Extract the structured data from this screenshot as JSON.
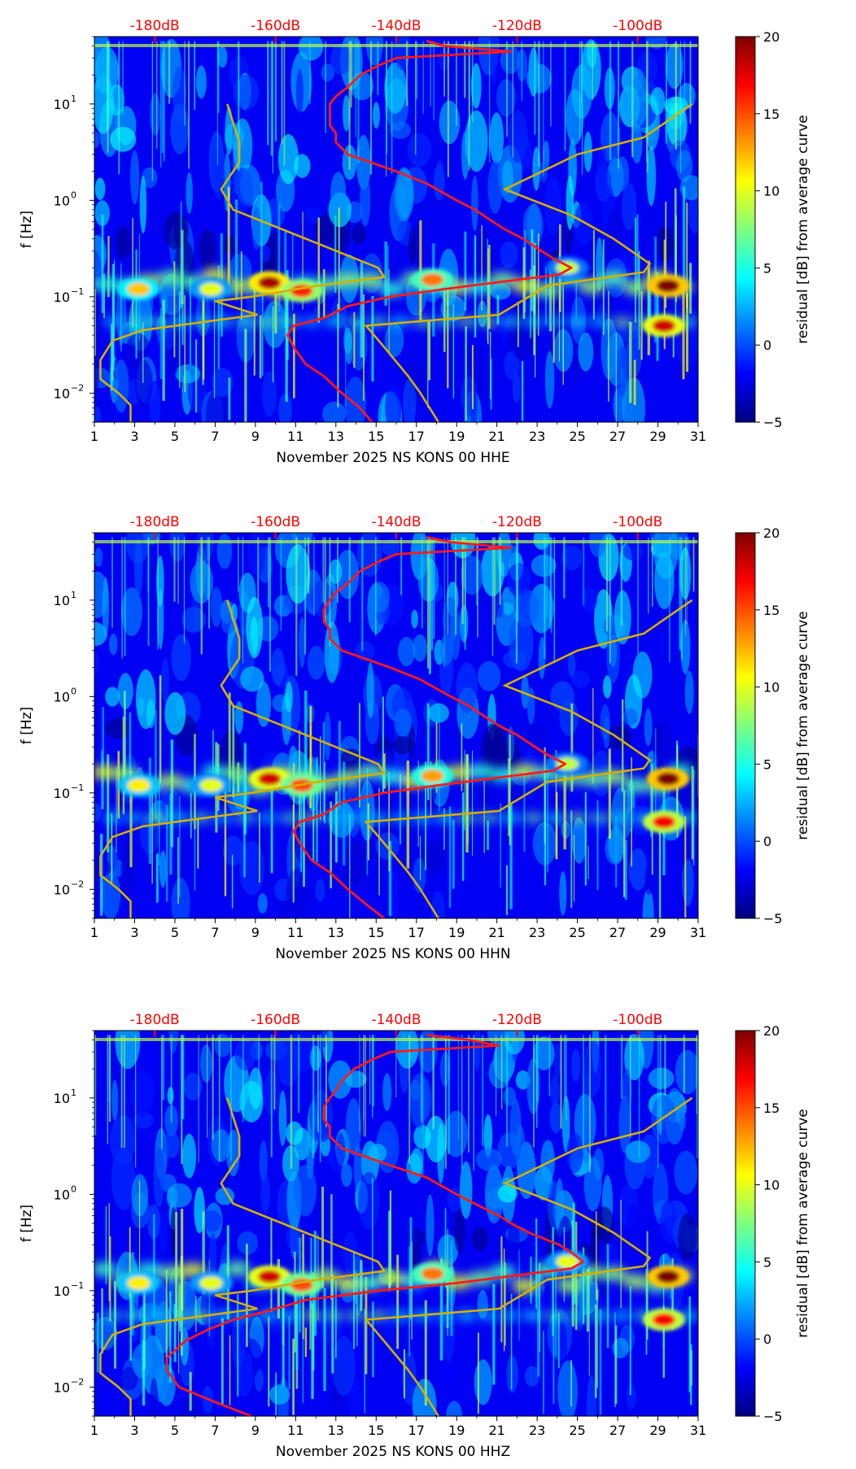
{
  "figure": {
    "top_axis_color": "#ff0000",
    "model_curve_color": "#d4b000",
    "median_curve_color": "#ff1a1a",
    "colormap": [
      "#00007f",
      "#0000ff",
      "#007fff",
      "#00ffff",
      "#7fff7f",
      "#ffff00",
      "#ff7f00",
      "#ff0000",
      "#7f0000"
    ]
  },
  "chart_data": [
    {
      "type": "heatmap",
      "channel": "HHE",
      "xlabel": "November 2025 NS KONS 00 HHE",
      "ylabel": "f [Hz]",
      "colorbar_label": "residual [dB] from average curve",
      "x_ticks": [
        "1",
        "3",
        "5",
        "7",
        "9",
        "11",
        "13",
        "15",
        "17",
        "19",
        "21",
        "23",
        "25",
        "27",
        "29",
        "31"
      ],
      "y_ticks": [
        "10",
        "10",
        "10",
        "10"
      ],
      "y_tick_exponents": [
        "−2",
        "−1",
        "0",
        "1"
      ],
      "y_tick_values": [
        0.01,
        0.1,
        1,
        10
      ],
      "xlim": [
        1,
        31
      ],
      "ylim": [
        0.005,
        50
      ],
      "top_ticks": [
        "-180dB",
        "-160dB",
        "-140dB",
        "-120dB",
        "-100dB"
      ],
      "top_tick_values": [
        -180,
        -160,
        -140,
        -120,
        -100
      ],
      "top_xlim": [
        -190,
        -90
      ],
      "colorbar_ticks": [
        "20",
        "15",
        "10",
        "5",
        "0",
        "−5"
      ],
      "colorbar_values": [
        20,
        15,
        10,
        5,
        0,
        -5
      ],
      "colorbar_range": [
        -5,
        20
      ],
      "median_curve": {
        "f": [
          45,
          40,
          35,
          30,
          25,
          20,
          15,
          12,
          10,
          8,
          6,
          5,
          4,
          3,
          2,
          1.5,
          1,
          0.8,
          0.6,
          0.5,
          0.4,
          0.3,
          0.25,
          0.2,
          0.17,
          0.15,
          0.12,
          0.1,
          0.08,
          0.06,
          0.05,
          0.04,
          0.03,
          0.02,
          0.015,
          0.01,
          0.007,
          0.005
        ],
        "db": [
          -135,
          -132,
          -121,
          -140,
          -143,
          -146,
          -148,
          -150,
          -151,
          -151,
          -151,
          -150,
          -150,
          -148,
          -140,
          -135,
          -130,
          -127,
          -124,
          -122,
          -119,
          -116,
          -114,
          -111,
          -113,
          -120,
          -132,
          -141,
          -148,
          -152,
          -157,
          -158,
          -157,
          -155,
          -152,
          -149,
          -146,
          -144
        ]
      },
      "hot_spots": [
        {
          "day": 9.7,
          "f": 0.14,
          "value": 19
        },
        {
          "day": 11.3,
          "f": 0.115,
          "value": 16
        },
        {
          "day": 17.8,
          "f": 0.15,
          "value": 14
        },
        {
          "day": 29.5,
          "f": 0.13,
          "value": 20
        },
        {
          "day": 29.3,
          "f": 0.05,
          "value": 18
        },
        {
          "day": 24.5,
          "f": 0.2,
          "value": 9
        },
        {
          "day": 3.2,
          "f": 0.12,
          "value": 12
        },
        {
          "day": 6.8,
          "f": 0.12,
          "value": 10
        }
      ]
    },
    {
      "type": "heatmap",
      "channel": "HHN",
      "xlabel": "November 2025 NS KONS 00 HHN",
      "ylabel": "f [Hz]",
      "colorbar_label": "residual [dB] from average curve",
      "x_ticks": [
        "1",
        "3",
        "5",
        "7",
        "9",
        "11",
        "13",
        "15",
        "17",
        "19",
        "21",
        "23",
        "25",
        "27",
        "29",
        "31"
      ],
      "y_ticks": [
        "10",
        "10",
        "10",
        "10"
      ],
      "y_tick_exponents": [
        "−2",
        "−1",
        "0",
        "1"
      ],
      "y_tick_values": [
        0.01,
        0.1,
        1,
        10
      ],
      "xlim": [
        1,
        31
      ],
      "ylim": [
        0.005,
        50
      ],
      "top_ticks": [
        "-180dB",
        "-160dB",
        "-140dB",
        "-120dB",
        "-100dB"
      ],
      "top_tick_values": [
        -180,
        -160,
        -140,
        -120,
        -100
      ],
      "top_xlim": [
        -190,
        -90
      ],
      "colorbar_ticks": [
        "20",
        "15",
        "10",
        "5",
        "0",
        "−5"
      ],
      "colorbar_values": [
        20,
        15,
        10,
        5,
        0,
        -5
      ],
      "colorbar_range": [
        -5,
        20
      ],
      "median_curve": {
        "f": [
          45,
          40,
          35,
          30,
          25,
          20,
          15,
          12,
          10,
          8,
          6,
          5,
          4,
          3,
          2,
          1.5,
          1,
          0.8,
          0.6,
          0.5,
          0.4,
          0.3,
          0.25,
          0.2,
          0.17,
          0.15,
          0.12,
          0.1,
          0.08,
          0.06,
          0.05,
          0.04,
          0.03,
          0.02,
          0.015,
          0.01,
          0.007,
          0.005
        ],
        "db": [
          -135,
          -131,
          -121,
          -140,
          -143,
          -146,
          -148,
          -150,
          -151,
          -152,
          -152,
          -151,
          -151,
          -149,
          -141,
          -136,
          -131,
          -128,
          -125,
          -123,
          -120,
          -117,
          -115,
          -112,
          -114,
          -121,
          -133,
          -142,
          -149,
          -152,
          -156,
          -157,
          -156,
          -154,
          -151,
          -148,
          -145,
          -142
        ]
      },
      "hot_spots": [
        {
          "day": 9.7,
          "f": 0.14,
          "value": 18
        },
        {
          "day": 11.3,
          "f": 0.12,
          "value": 15
        },
        {
          "day": 17.8,
          "f": 0.15,
          "value": 13
        },
        {
          "day": 29.5,
          "f": 0.14,
          "value": 20
        },
        {
          "day": 29.3,
          "f": 0.05,
          "value": 17
        },
        {
          "day": 24.5,
          "f": 0.2,
          "value": 9
        },
        {
          "day": 3.2,
          "f": 0.12,
          "value": 11
        },
        {
          "day": 6.8,
          "f": 0.12,
          "value": 10
        }
      ]
    },
    {
      "type": "heatmap",
      "channel": "HHZ",
      "xlabel": "November 2025 NS KONS 00 HHZ",
      "ylabel": "f [Hz]",
      "colorbar_label": "residual [dB] from average curve",
      "x_ticks": [
        "1",
        "3",
        "5",
        "7",
        "9",
        "11",
        "13",
        "15",
        "17",
        "19",
        "21",
        "23",
        "25",
        "27",
        "29",
        "31"
      ],
      "y_ticks": [
        "10",
        "10",
        "10",
        "10"
      ],
      "y_tick_exponents": [
        "−2",
        "−1",
        "0",
        "1"
      ],
      "y_tick_values": [
        0.01,
        0.1,
        1,
        10
      ],
      "xlim": [
        1,
        31
      ],
      "ylim": [
        0.005,
        50
      ],
      "top_ticks": [
        "-180dB",
        "-160dB",
        "-140dB",
        "-120dB",
        "-100dB"
      ],
      "top_tick_values": [
        -180,
        -160,
        -140,
        -120,
        -100
      ],
      "top_xlim": [
        -190,
        -90
      ],
      "colorbar_ticks": [
        "20",
        "15",
        "10",
        "5",
        "0",
        "−5"
      ],
      "colorbar_values": [
        20,
        15,
        10,
        5,
        0,
        -5
      ],
      "colorbar_range": [
        -5,
        20
      ],
      "median_curve": {
        "f": [
          45,
          40,
          35,
          30,
          25,
          20,
          15,
          12,
          10,
          8,
          6,
          5,
          4,
          3,
          2,
          1.5,
          1,
          0.8,
          0.6,
          0.5,
          0.4,
          0.3,
          0.25,
          0.2,
          0.17,
          0.15,
          0.12,
          0.1,
          0.08,
          0.06,
          0.05,
          0.04,
          0.03,
          0.02,
          0.015,
          0.01,
          0.007,
          0.005
        ],
        "db": [
          -135,
          -128,
          -123,
          -141,
          -144,
          -147,
          -149,
          -150,
          -151,
          -152,
          -152,
          -151,
          -151,
          -149,
          -141,
          -135,
          -130,
          -127,
          -123,
          -121,
          -118,
          -113,
          -111,
          -109,
          -111,
          -118,
          -130,
          -143,
          -155,
          -162,
          -167,
          -171,
          -175,
          -178,
          -178,
          -176,
          -170,
          -164
        ]
      },
      "hot_spots": [
        {
          "day": 9.7,
          "f": 0.14,
          "value": 18
        },
        {
          "day": 11.3,
          "f": 0.115,
          "value": 15
        },
        {
          "day": 17.8,
          "f": 0.15,
          "value": 14
        },
        {
          "day": 29.5,
          "f": 0.14,
          "value": 20
        },
        {
          "day": 29.3,
          "f": 0.05,
          "value": 17
        },
        {
          "day": 24.5,
          "f": 0.2,
          "value": 10
        },
        {
          "day": 3.2,
          "f": 0.12,
          "value": 11
        },
        {
          "day": 6.8,
          "f": 0.12,
          "value": 10
        }
      ]
    }
  ],
  "model_curves": {
    "low": {
      "f": [
        10,
        4,
        2.5,
        1.3,
        0.8,
        0.4,
        0.2,
        0.16,
        0.13,
        0.1,
        0.09,
        0.065,
        0.045,
        0.035,
        0.022,
        0.014,
        0.01,
        0.0075,
        0.005
      ],
      "db": [
        -168,
        -166,
        -166,
        -169,
        -167,
        -155,
        -143,
        -142,
        -153,
        -164,
        -170,
        -163,
        -182,
        -187,
        -189,
        -189,
        -186,
        -184,
        -184
      ]
    },
    "high": {
      "f": [
        10,
        4.5,
        3,
        1.3,
        0.7,
        0.4,
        0.22,
        0.18,
        0.13,
        0.065,
        0.05,
        0.03,
        0.015,
        0.01,
        0.005
      ],
      "db": [
        -91,
        -99,
        -110,
        -122,
        -111,
        -104,
        -98,
        -99,
        -115,
        -123,
        -145,
        -142,
        -138,
        -136,
        -133
      ]
    }
  }
}
